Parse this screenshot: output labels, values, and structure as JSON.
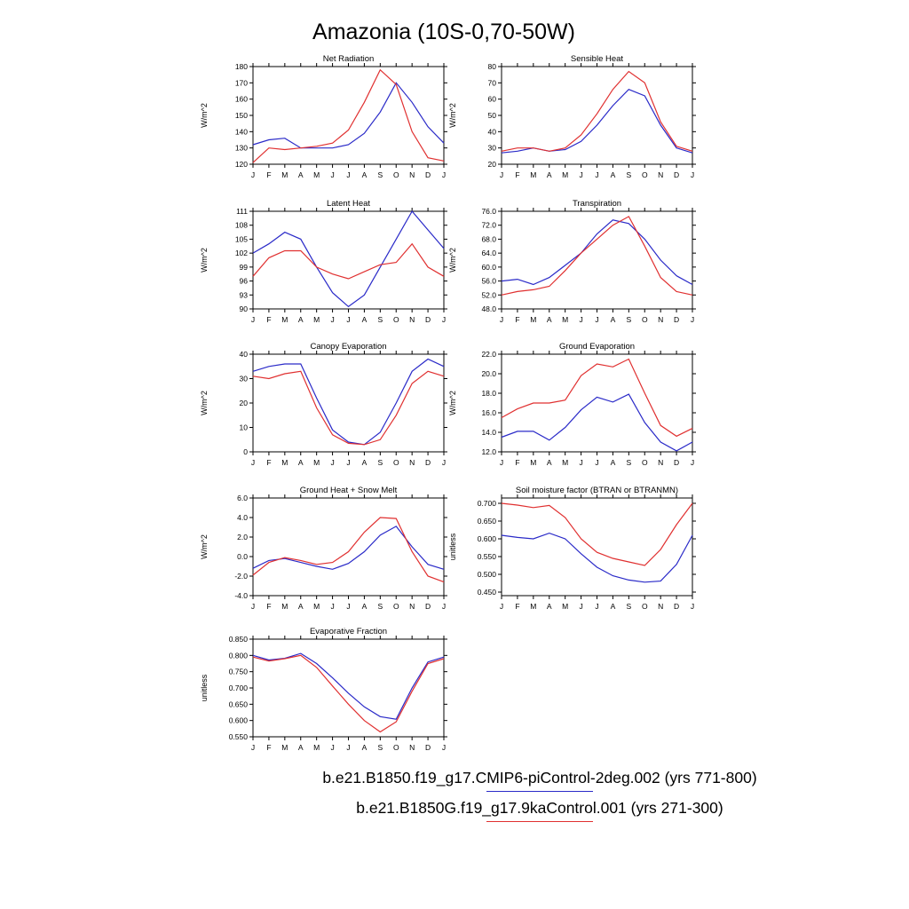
{
  "page_title": "Amazonia (10S-0,70-50W)",
  "colors": {
    "blue": "#2a2ac8",
    "red": "#e03030",
    "axis": "#000000"
  },
  "months": [
    "J",
    "F",
    "M",
    "A",
    "M",
    "J",
    "J",
    "A",
    "S",
    "O",
    "N",
    "D",
    "J"
  ],
  "legend": [
    {
      "label": "b.e21.B1850.f19_g17.CMIP6-piControl-2deg.002 (yrs 771-800)",
      "color": "blue"
    },
    {
      "label": "b.e21.B1850G.f19_g17.9kaControl.001 (yrs 271-300)",
      "color": "red"
    }
  ],
  "chart_data": [
    {
      "type": "line",
      "title": "Net Radiation",
      "ylabel": "W/m^2",
      "ylim": [
        120,
        180
      ],
      "yticks": [
        "120",
        "130",
        "140",
        "150",
        "160",
        "170",
        "180"
      ],
      "series": [
        {
          "name": "piControl",
          "color": "blue",
          "values": [
            132,
            135,
            136,
            130,
            130,
            130,
            132,
            139,
            152,
            170,
            158,
            143,
            133
          ]
        },
        {
          "name": "9kaControl",
          "color": "red",
          "values": [
            121,
            130,
            129,
            130,
            131,
            133,
            141,
            158,
            178,
            169,
            140,
            124,
            122
          ]
        }
      ]
    },
    {
      "type": "line",
      "title": "Sensible Heat",
      "ylabel": "W/m^2",
      "ylim": [
        20,
        80
      ],
      "yticks": [
        "20",
        "30",
        "40",
        "50",
        "60",
        "70",
        "80"
      ],
      "series": [
        {
          "name": "piControl",
          "color": "blue",
          "values": [
            27,
            28,
            30,
            28,
            29,
            34,
            44,
            56,
            66,
            62,
            44,
            30,
            27
          ]
        },
        {
          "name": "9kaControl",
          "color": "red",
          "values": [
            28,
            30,
            30,
            28,
            30,
            38,
            51,
            66,
            77,
            70,
            46,
            31,
            28
          ]
        }
      ]
    },
    {
      "type": "line",
      "title": "Latent Heat",
      "ylabel": "W/m^2",
      "ylim": [
        90,
        111
      ],
      "yticks": [
        "90",
        "93",
        "96",
        "99",
        "102",
        "105",
        "108",
        "111"
      ],
      "series": [
        {
          "name": "piControl",
          "color": "blue",
          "values": [
            102,
            104,
            106.5,
            105,
            99,
            93.5,
            90.5,
            93,
            99,
            105,
            111,
            107,
            103
          ]
        },
        {
          "name": "9kaControl",
          "color": "red",
          "values": [
            97,
            101,
            102.5,
            102.5,
            99,
            97.5,
            96.5,
            98,
            99.5,
            100,
            104,
            99,
            97
          ]
        }
      ]
    },
    {
      "type": "line",
      "title": "Transpiration",
      "ylabel": "W/m^2",
      "ylim": [
        48,
        76
      ],
      "yticks": [
        "48.0",
        "52.0",
        "56.0",
        "60.0",
        "64.0",
        "68.0",
        "72.0",
        "76.0"
      ],
      "series": [
        {
          "name": "piControl",
          "color": "blue",
          "values": [
            56,
            56.5,
            55,
            57,
            60.5,
            64,
            69.5,
            73.5,
            72.5,
            68,
            62,
            57.5,
            55
          ]
        },
        {
          "name": "9kaControl",
          "color": "red",
          "values": [
            52,
            53,
            53.5,
            54.5,
            59,
            64,
            68,
            72,
            74.5,
            66,
            57,
            53,
            52
          ]
        }
      ]
    },
    {
      "type": "line",
      "title": "Canopy Evaporation",
      "ylabel": "W/m^2",
      "ylim": [
        0,
        40
      ],
      "yticks": [
        "0",
        "10",
        "20",
        "30",
        "40"
      ],
      "series": [
        {
          "name": "piControl",
          "color": "blue",
          "values": [
            33,
            35,
            36,
            36,
            22,
            9,
            4,
            3,
            8,
            20,
            33,
            38,
            35
          ]
        },
        {
          "name": "9kaControl",
          "color": "red",
          "values": [
            31,
            30,
            32,
            33,
            18,
            7,
            3.5,
            3,
            5,
            15,
            28,
            33,
            31
          ]
        }
      ]
    },
    {
      "type": "line",
      "title": "Ground Evaporation",
      "ylabel": "W/m^2",
      "ylim": [
        12,
        22
      ],
      "yticks": [
        "12.0",
        "14.0",
        "16.0",
        "18.0",
        "20.0",
        "22.0"
      ],
      "series": [
        {
          "name": "piControl",
          "color": "blue",
          "values": [
            13.5,
            14.1,
            14.1,
            13.2,
            14.5,
            16.3,
            17.6,
            17.1,
            17.9,
            15.0,
            13.0,
            12.1,
            13.0
          ]
        },
        {
          "name": "9kaControl",
          "color": "red",
          "values": [
            15.5,
            16.4,
            17.0,
            17.0,
            17.3,
            19.8,
            21.0,
            20.7,
            21.5,
            18.0,
            14.7,
            13.6,
            14.4
          ]
        }
      ]
    },
    {
      "type": "line",
      "title": "Ground Heat + Snow Melt",
      "ylabel": "W/m^2",
      "ylim": [
        -4,
        6
      ],
      "yticks": [
        "-4.0",
        "-2.0",
        "0.0",
        "2.0",
        "4.0",
        "6.0"
      ],
      "series": [
        {
          "name": "piControl",
          "color": "blue",
          "values": [
            -1.2,
            -0.4,
            -0.2,
            -0.6,
            -1.0,
            -1.3,
            -0.7,
            0.5,
            2.2,
            3.1,
            1.0,
            -0.8,
            -1.3
          ]
        },
        {
          "name": "9kaControl",
          "color": "red",
          "values": [
            -1.9,
            -0.6,
            -0.1,
            -0.4,
            -0.8,
            -0.6,
            0.5,
            2.5,
            4.0,
            3.9,
            0.5,
            -2.0,
            -2.6
          ]
        }
      ]
    },
    {
      "type": "line",
      "title": "Soil moisture factor (BTRAN or BTRANMN)",
      "ylabel": "unitless",
      "ylim": [
        0.44,
        0.715
      ],
      "yticks": [
        "0.450",
        "0.500",
        "0.550",
        "0.600",
        "0.650",
        "0.700"
      ],
      "series": [
        {
          "name": "piControl",
          "color": "blue",
          "values": [
            0.61,
            0.604,
            0.6,
            0.616,
            0.6,
            0.558,
            0.52,
            0.496,
            0.484,
            0.478,
            0.481,
            0.528,
            0.61
          ]
        },
        {
          "name": "9kaControl",
          "color": "red",
          "values": [
            0.7,
            0.695,
            0.688,
            0.694,
            0.66,
            0.6,
            0.562,
            0.545,
            0.535,
            0.525,
            0.57,
            0.64,
            0.7
          ]
        }
      ]
    },
    {
      "type": "line",
      "title": "Evaporative Fraction",
      "ylabel": "unitless",
      "ylim": [
        0.55,
        0.85
      ],
      "yticks": [
        "0.550",
        "0.600",
        "0.650",
        "0.700",
        "0.750",
        "0.800",
        "0.850"
      ],
      "series": [
        {
          "name": "piControl",
          "color": "blue",
          "values": [
            0.8,
            0.786,
            0.791,
            0.806,
            0.775,
            0.731,
            0.684,
            0.642,
            0.612,
            0.604,
            0.7,
            0.78,
            0.795
          ]
        },
        {
          "name": "9kaControl",
          "color": "red",
          "values": [
            0.795,
            0.783,
            0.79,
            0.8,
            0.763,
            0.706,
            0.65,
            0.6,
            0.565,
            0.596,
            0.69,
            0.775,
            0.79
          ]
        }
      ]
    }
  ]
}
